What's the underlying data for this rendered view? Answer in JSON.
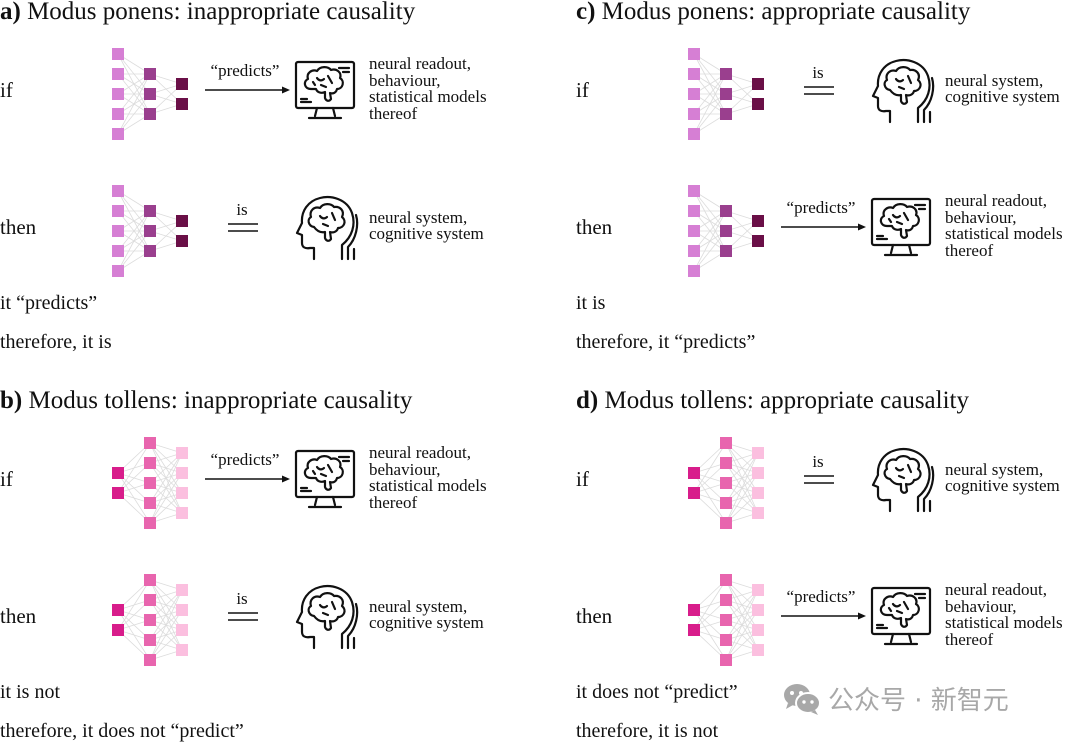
{
  "colors": {
    "ponens_layers": [
      "#d67fd4",
      "#9a3f8e",
      "#6a0f47"
    ],
    "tollens_layers": [
      "#d81d8b",
      "#e865ae",
      "#fbbfdf"
    ],
    "connection": "#dcdcdc",
    "watermark": "#a8a8a8"
  },
  "panels": [
    {
      "letter": "a)",
      "title": "Modus ponens: inappropriate causality",
      "type": "ponens",
      "rows": [
        {
          "cond": "if",
          "relation": "predicts",
          "relation_label": "“predicts”",
          "icon": "monitor-brain-icon",
          "target": [
            "neural readout,",
            "behaviour,",
            "statistical models",
            "thereof"
          ]
        },
        {
          "cond": "then",
          "relation": "is",
          "relation_label": "is",
          "icon": "head-brain-icon",
          "target": [
            "neural system,",
            "cognitive system"
          ]
        }
      ],
      "conclusion": [
        "it “predicts”",
        "therefore, it is"
      ]
    },
    {
      "letter": "c)",
      "title": "Modus ponens: appropriate causality",
      "type": "ponens",
      "rows": [
        {
          "cond": "if",
          "relation": "is",
          "relation_label": "is",
          "icon": "head-brain-icon",
          "target": [
            "neural system,",
            "cognitive system"
          ]
        },
        {
          "cond": "then",
          "relation": "predicts",
          "relation_label": "“predicts”",
          "icon": "monitor-brain-icon",
          "target": [
            "neural readout,",
            "behaviour,",
            "statistical models",
            "thereof"
          ]
        }
      ],
      "conclusion": [
        "it is",
        "therefore, it “predicts”"
      ]
    },
    {
      "letter": "b)",
      "title": "Modus tollens: inappropriate causality",
      "type": "tollens",
      "rows": [
        {
          "cond": "if",
          "relation": "predicts",
          "relation_label": "“predicts”",
          "icon": "monitor-brain-icon",
          "target": [
            "neural readout,",
            "behaviour,",
            "statistical models",
            "thereof"
          ]
        },
        {
          "cond": "then",
          "relation": "is",
          "relation_label": "is",
          "icon": "head-brain-icon",
          "target": [
            "neural system,",
            "cognitive system"
          ]
        }
      ],
      "conclusion": [
        "it is not",
        "therefore, it does not “predict”"
      ]
    },
    {
      "letter": "d)",
      "title": "Modus tollens: appropriate causality",
      "type": "tollens",
      "rows": [
        {
          "cond": "if",
          "relation": "is",
          "relation_label": "is",
          "icon": "head-brain-icon",
          "target": [
            "neural system,",
            "cognitive system"
          ]
        },
        {
          "cond": "then",
          "relation": "predicts",
          "relation_label": "“predicts”",
          "icon": "monitor-brain-icon",
          "target": [
            "neural readout,",
            "behaviour,",
            "statistical models",
            "thereof"
          ]
        }
      ],
      "conclusion": [
        "it does not “predict”",
        "therefore, it is not"
      ]
    }
  ],
  "watermark": {
    "text": "公众号 · 新智元",
    "icon": "wechat-icon"
  }
}
